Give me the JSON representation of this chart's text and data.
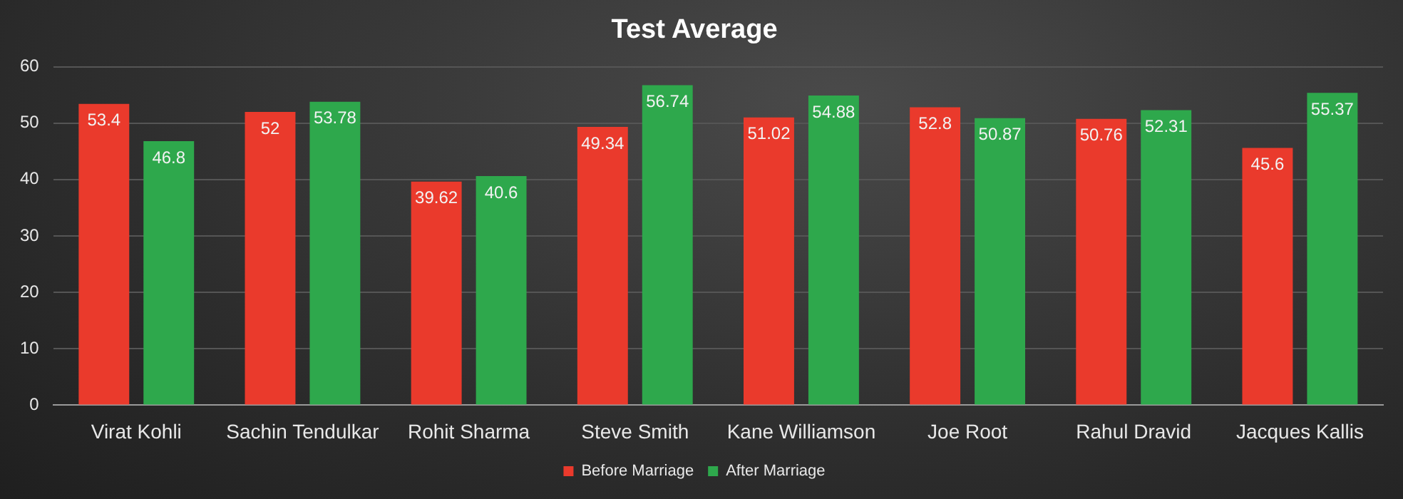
{
  "chart_data": {
    "type": "bar",
    "title": "Test Average",
    "categories": [
      "Virat Kohli",
      "Sachin Tendulkar",
      "Rohit Sharma",
      "Steve Smith",
      "Kane Williamson",
      "Joe Root",
      "Rahul Dravid",
      "Jacques Kallis"
    ],
    "series": [
      {
        "name": "Before Marriage",
        "color": "#ea3a2c",
        "values": [
          53.4,
          52,
          39.62,
          49.34,
          51.02,
          52.8,
          50.76,
          45.6
        ]
      },
      {
        "name": "After Marriage",
        "color": "#2ea84c",
        "values": [
          46.8,
          53.78,
          40.6,
          56.74,
          54.88,
          50.87,
          52.31,
          55.37
        ]
      }
    ],
    "ylim": [
      0,
      60
    ],
    "yticks": [
      0,
      10,
      20,
      30,
      40,
      50,
      60
    ],
    "grid": "y",
    "legend": "bottom",
    "data_labels": true
  }
}
